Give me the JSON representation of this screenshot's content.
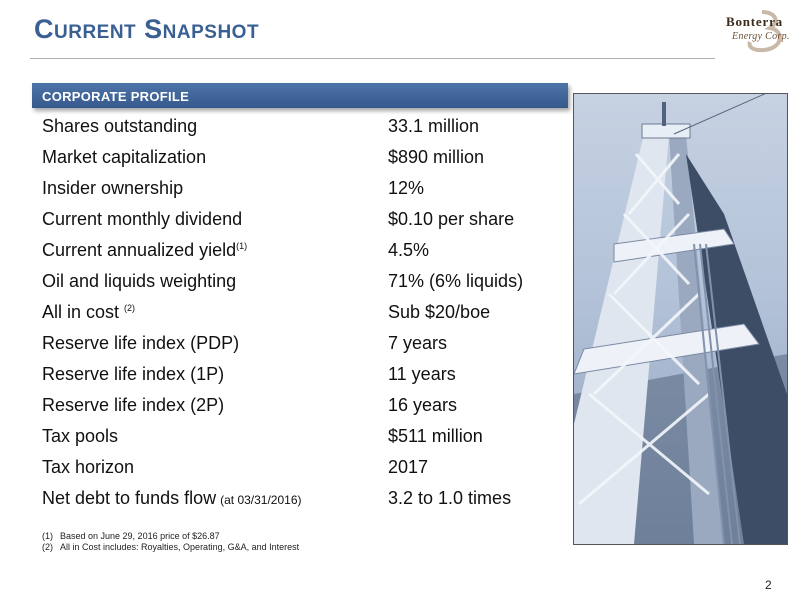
{
  "header": {
    "title": "Current Snapshot",
    "logo": {
      "name": "Bonterra",
      "subtitle": "Energy Corp."
    }
  },
  "section": {
    "title": "CORPORATE PROFILE"
  },
  "profile": {
    "rows": [
      {
        "label": "Shares outstanding",
        "value": "33.1 million"
      },
      {
        "label": "Market capitalization",
        "value": "$890 million"
      },
      {
        "label": "Insider ownership",
        "value": "12%"
      },
      {
        "label": "Current monthly dividend",
        "value": "$0.10 per share"
      },
      {
        "label": "Current annualized yield",
        "sup": "(1)",
        "value": "4.5%"
      },
      {
        "label": "Oil and liquids weighting",
        "value": "71% (6% liquids)"
      },
      {
        "label": "All in cost",
        "sup": "(2)",
        "value": "Sub $20/boe"
      },
      {
        "label": "Reserve life index (PDP)",
        "value": "7 years"
      },
      {
        "label": "Reserve life index (1P)",
        "value": "11 years"
      },
      {
        "label": "Reserve life index (2P)",
        "value": "16 years"
      },
      {
        "label": "Tax pools",
        "value": "$511 million"
      },
      {
        "label": "Tax horizon",
        "value": "2017"
      },
      {
        "label": "Net debt to funds flow",
        "note": "(at 03/31/2016)",
        "value": "3.2 to 1.0 times"
      }
    ]
  },
  "footnotes": [
    {
      "num": "(1)",
      "text": "Based on June 29, 2016 price of $26.87"
    },
    {
      "num": "(2)",
      "text": "All in Cost includes: Royalties, Operating, G&A, and Interest"
    }
  ],
  "page_number": "2",
  "colors": {
    "title": "#3a5f93",
    "section_bar": "#3e6399",
    "logo_text": "#3b2a1e"
  }
}
